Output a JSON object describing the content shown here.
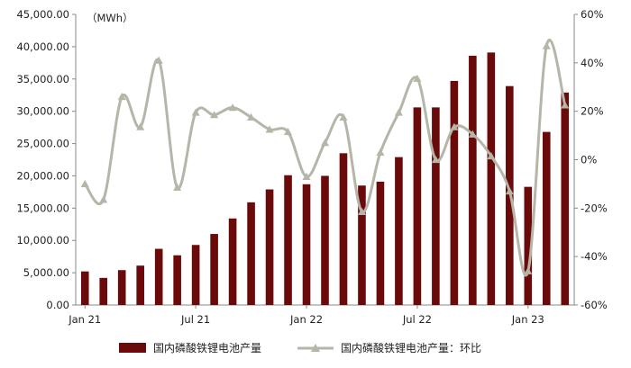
{
  "chart_data": {
    "type": "bar",
    "unit_label": "（MWh）",
    "left_axis": {
      "ylim": [
        0,
        45000
      ],
      "ticks": [
        "45,000.00",
        "40,000.00",
        "35,000.00",
        "30,000.00",
        "25,000.00",
        "20,000.00",
        "15,000.00",
        "10,000.00",
        "5,000.00",
        "0.00"
      ]
    },
    "right_axis": {
      "ylim": [
        -60,
        60
      ],
      "ticks": [
        "60%",
        "40%",
        "20%",
        "0%",
        "-20%",
        "-40%",
        "-60%"
      ]
    },
    "x_tick_labels": [
      "Jan 21",
      "Jul 21",
      "Jan 22",
      "Jul 22",
      "Jan 23"
    ],
    "categories": [
      "2021-01",
      "2021-02",
      "2021-03",
      "2021-04",
      "2021-05",
      "2021-06",
      "2021-07",
      "2021-08",
      "2021-09",
      "2021-10",
      "2021-11",
      "2021-12",
      "2022-01",
      "2022-02",
      "2022-03",
      "2022-04",
      "2022-05",
      "2022-06",
      "2022-07",
      "2022-08",
      "2022-09",
      "2022-10",
      "2022-11",
      "2022-12",
      "2023-01",
      "2023-02",
      "2023-03"
    ],
    "series": [
      {
        "name": "国内磷酸铁锂电池产量",
        "type": "bar",
        "axis": "left",
        "color": "#6b0a0a",
        "values": [
          5200,
          4200,
          5400,
          6100,
          8700,
          7700,
          9300,
          11000,
          13400,
          15900,
          17900,
          20100,
          18700,
          20000,
          23500,
          18500,
          19100,
          22900,
          30600,
          30600,
          34700,
          38600,
          39100,
          33900,
          18300,
          26800,
          32900
        ]
      },
      {
        "name": "国内磷酸铁锂电池产量：环比",
        "type": "line",
        "axis": "right",
        "color": "#b5b5a8",
        "values": [
          -10,
          -16.5,
          26,
          13.5,
          41,
          -11.5,
          19.5,
          18.5,
          21.5,
          17.5,
          12.5,
          11.5,
          -7,
          7,
          17.5,
          -21.5,
          3,
          19.5,
          33.5,
          0,
          13.5,
          10.5,
          1.5,
          -13,
          -46,
          47,
          22.5
        ]
      }
    ],
    "legend_position": "bottom",
    "grid": false
  }
}
